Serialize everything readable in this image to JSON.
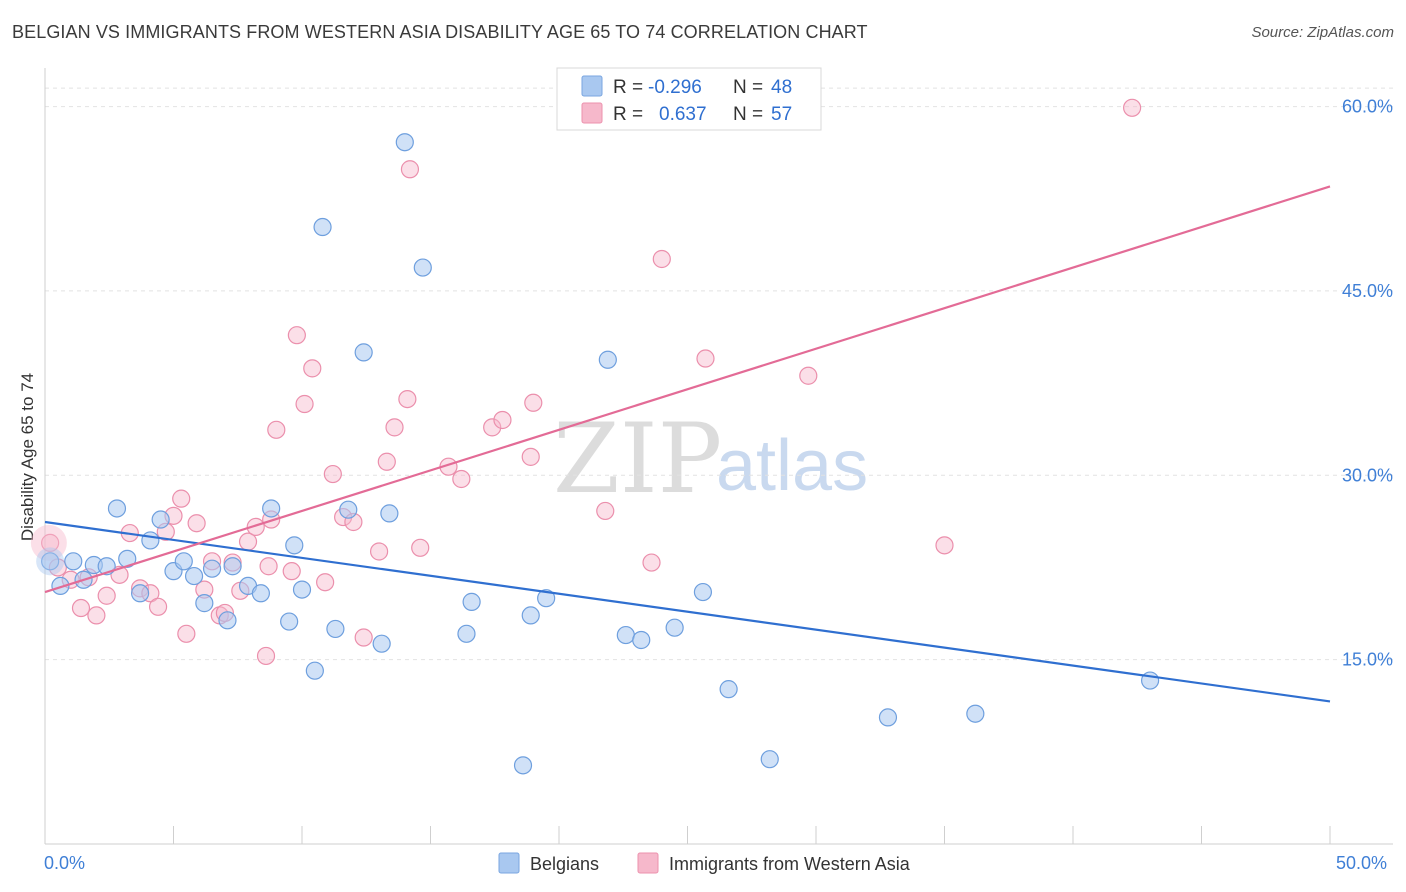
{
  "title": "BELGIAN VS IMMIGRANTS FROM WESTERN ASIA DISABILITY AGE 65 TO 74 CORRELATION CHART",
  "source": "Source: ZipAtlas.com",
  "watermark": {
    "zip": "ZIP",
    "atlas": "atlas"
  },
  "legend": {
    "rows": [
      {
        "r_label": "R =",
        "r_value": "-0.296",
        "n_label": "N =",
        "n_value": "48",
        "color": "#a9c8f0"
      },
      {
        "r_label": "R =",
        "r_value": "0.637",
        "n_label": "N =",
        "n_value": "57",
        "color": "#f6b8cb"
      }
    ]
  },
  "bottom_legend": [
    {
      "label": "Belgians",
      "color": "#a9c8f0"
    },
    {
      "label": "Immigrants from Western Asia",
      "color": "#f6b8cb"
    }
  ],
  "colors": {
    "blue_line": "#2f6fd0",
    "pink_line": "#e36b96",
    "blue_fill": "#a9c8f0",
    "pink_fill": "#f6b8cb",
    "axis_text": "#3f7fd6"
  },
  "chart_data": {
    "type": "scatter",
    "title": "BELGIAN VS IMMIGRANTS FROM WESTERN ASIA DISABILITY AGE 65 TO 74 CORRELATION CHART",
    "xlabel": "",
    "ylabel": "Disability Age 65 to 74",
    "xlim": [
      0,
      50
    ],
    "ylim": [
      0,
      62
    ],
    "x_tick_labels": [
      "0.0%",
      "50.0%"
    ],
    "y_ticks": [
      15,
      30,
      45,
      60
    ],
    "y_tick_labels": [
      "15.0%",
      "30.0%",
      "45.0%",
      "60.0%"
    ],
    "grid": true,
    "legend_position": "top-center",
    "series": [
      {
        "name": "Belgians",
        "color": "#a9c8f0",
        "trend": {
          "x": [
            0,
            50
          ],
          "y": [
            26.2,
            11.6
          ]
        },
        "points": [
          [
            0.2,
            23.0
          ],
          [
            0.6,
            21.0
          ],
          [
            1.1,
            23.0
          ],
          [
            1.5,
            21.5
          ],
          [
            1.9,
            22.7
          ],
          [
            2.4,
            22.6
          ],
          [
            2.8,
            27.3
          ],
          [
            3.2,
            23.2
          ],
          [
            3.7,
            20.4
          ],
          [
            4.1,
            24.7
          ],
          [
            4.5,
            26.4
          ],
          [
            5.0,
            22.2
          ],
          [
            5.4,
            23.0
          ],
          [
            5.8,
            21.8
          ],
          [
            6.2,
            19.6
          ],
          [
            6.5,
            22.4
          ],
          [
            7.1,
            18.2
          ],
          [
            7.3,
            22.6
          ],
          [
            7.9,
            21.0
          ],
          [
            8.4,
            20.4
          ],
          [
            8.8,
            27.3
          ],
          [
            9.5,
            18.1
          ],
          [
            9.7,
            24.3
          ],
          [
            10.0,
            20.7
          ],
          [
            10.5,
            14.1
          ],
          [
            10.8,
            50.2
          ],
          [
            11.3,
            17.5
          ],
          [
            11.8,
            27.2
          ],
          [
            12.4,
            40.0
          ],
          [
            13.1,
            16.3
          ],
          [
            13.4,
            26.9
          ],
          [
            14.0,
            57.1
          ],
          [
            14.7,
            46.9
          ],
          [
            16.4,
            17.1
          ],
          [
            16.6,
            19.7
          ],
          [
            18.6,
            6.4
          ],
          [
            18.9,
            18.6
          ],
          [
            19.5,
            20.0
          ],
          [
            21.9,
            39.4
          ],
          [
            22.6,
            17.0
          ],
          [
            23.2,
            16.6
          ],
          [
            24.5,
            17.6
          ],
          [
            25.6,
            20.5
          ],
          [
            26.6,
            12.6
          ],
          [
            28.2,
            6.9
          ],
          [
            32.8,
            10.3
          ],
          [
            36.2,
            10.6
          ],
          [
            43.0,
            13.3
          ]
        ]
      },
      {
        "name": "Immigrants from Western Asia",
        "color": "#f6b8cb",
        "trend": {
          "x": [
            0,
            50
          ],
          "y": [
            20.5,
            53.5
          ]
        },
        "points": [
          [
            0.2,
            24.5
          ],
          [
            0.5,
            22.5
          ],
          [
            1.0,
            21.5
          ],
          [
            1.4,
            19.2
          ],
          [
            1.7,
            21.7
          ],
          [
            2.0,
            18.6
          ],
          [
            2.4,
            20.2
          ],
          [
            2.9,
            21.9
          ],
          [
            3.3,
            25.3
          ],
          [
            3.7,
            20.8
          ],
          [
            4.1,
            20.4
          ],
          [
            4.4,
            19.3
          ],
          [
            4.7,
            25.4
          ],
          [
            5.0,
            26.7
          ],
          [
            5.3,
            28.1
          ],
          [
            5.5,
            17.1
          ],
          [
            5.9,
            26.1
          ],
          [
            6.2,
            20.7
          ],
          [
            6.5,
            23.0
          ],
          [
            6.8,
            18.6
          ],
          [
            7.0,
            18.8
          ],
          [
            7.3,
            22.9
          ],
          [
            7.6,
            20.6
          ],
          [
            7.9,
            24.6
          ],
          [
            8.2,
            25.8
          ],
          [
            8.6,
            15.3
          ],
          [
            8.8,
            26.4
          ],
          [
            9.0,
            33.7
          ],
          [
            9.8,
            41.4
          ],
          [
            10.1,
            35.8
          ],
          [
            10.4,
            38.7
          ],
          [
            10.9,
            21.3
          ],
          [
            11.2,
            30.1
          ],
          [
            11.6,
            26.6
          ],
          [
            12.0,
            26.2
          ],
          [
            12.4,
            16.8
          ],
          [
            13.0,
            23.8
          ],
          [
            13.3,
            31.1
          ],
          [
            13.6,
            33.9
          ],
          [
            14.1,
            36.2
          ],
          [
            14.2,
            54.9
          ],
          [
            14.6,
            24.1
          ],
          [
            15.7,
            30.7
          ],
          [
            16.2,
            29.7
          ],
          [
            17.4,
            33.9
          ],
          [
            17.8,
            34.5
          ],
          [
            18.9,
            31.5
          ],
          [
            19.0,
            35.9
          ],
          [
            21.8,
            27.1
          ],
          [
            23.6,
            22.9
          ],
          [
            24.0,
            47.6
          ],
          [
            25.7,
            39.5
          ],
          [
            29.7,
            38.1
          ],
          [
            35.0,
            24.3
          ],
          [
            42.3,
            59.9
          ],
          [
            8.7,
            22.6
          ],
          [
            9.6,
            22.2
          ]
        ]
      }
    ]
  }
}
